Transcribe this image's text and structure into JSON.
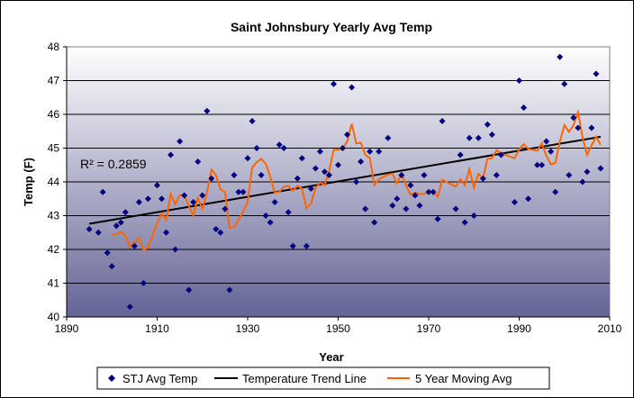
{
  "chart_data": {
    "type": "scatter",
    "title": "Saint Johnsbury Yearly Avg Temp",
    "xlabel": "Year",
    "ylabel": "Temp (F)",
    "xlim": [
      1890,
      2010
    ],
    "ylim": [
      40,
      48
    ],
    "xticks": [
      1890,
      1910,
      1930,
      1950,
      1970,
      1990,
      2010
    ],
    "yticks": [
      40,
      41,
      42,
      43,
      44,
      45,
      46,
      47,
      48
    ],
    "grid": "horizontal",
    "legend_position": "bottom",
    "annotation": "R² = 0.2859",
    "colors": {
      "points": "#000080",
      "trend": "#000000",
      "moving_avg": "#ff6600",
      "plot_top": "#ffffff",
      "plot_bottom": "#646496"
    },
    "series": [
      {
        "name": "STJ Avg Temp",
        "kind": "scatter",
        "x": [
          1895,
          1897,
          1898,
          1899,
          1900,
          1901,
          1902,
          1903,
          1904,
          1905,
          1906,
          1907,
          1908,
          1910,
          1911,
          1912,
          1913,
          1914,
          1915,
          1916,
          1917,
          1918,
          1919,
          1920,
          1921,
          1922,
          1923,
          1924,
          1925,
          1926,
          1927,
          1928,
          1929,
          1930,
          1931,
          1932,
          1933,
          1934,
          1935,
          1936,
          1937,
          1938,
          1939,
          1940,
          1941,
          1942,
          1943,
          1944,
          1945,
          1946,
          1947,
          1948,
          1949,
          1950,
          1951,
          1952,
          1953,
          1954,
          1955,
          1956,
          1957,
          1958,
          1959,
          1961,
          1962,
          1963,
          1964,
          1965,
          1966,
          1967,
          1968,
          1969,
          1970,
          1971,
          1972,
          1973,
          1976,
          1977,
          1978,
          1979,
          1980,
          1981,
          1982,
          1983,
          1984,
          1985,
          1986,
          1989,
          1990,
          1991,
          1992,
          1994,
          1995,
          1996,
          1997,
          1998,
          1999,
          2000,
          2001,
          2002,
          2003,
          2004,
          2005,
          2006,
          2007,
          2008
        ],
        "y": [
          42.6,
          42.5,
          43.7,
          41.9,
          41.5,
          42.7,
          42.8,
          43.1,
          40.3,
          42.1,
          43.4,
          41.0,
          43.5,
          43.9,
          43.5,
          42.5,
          44.8,
          42.0,
          45.2,
          43.6,
          40.8,
          43.4,
          44.6,
          43.6,
          46.1,
          44.1,
          42.6,
          42.5,
          43.2,
          40.8,
          44.2,
          43.7,
          43.7,
          44.7,
          45.8,
          45.0,
          44.2,
          43.0,
          42.8,
          43.4,
          45.1,
          45.0,
          43.1,
          42.1,
          44.1,
          44.7,
          42.1,
          43.8,
          44.4,
          44.9,
          44.3,
          44.2,
          46.9,
          44.5,
          45.0,
          45.4,
          46.8,
          44.0,
          44.6,
          43.2,
          44.9,
          42.8,
          44.9,
          45.3,
          43.3,
          43.5,
          44.2,
          43.2,
          43.9,
          43.6,
          43.3,
          44.2,
          43.7,
          43.7,
          42.9,
          45.8,
          43.2,
          44.8,
          42.8,
          45.3,
          43.0,
          45.3,
          44.1,
          45.7,
          45.4,
          44.2,
          44.8,
          43.4,
          47.0,
          46.2,
          43.5,
          44.5,
          44.5,
          45.2,
          44.9,
          43.7,
          47.7,
          46.9,
          44.2,
          45.9,
          45.6,
          44.0,
          44.3,
          45.6,
          47.2,
          44.4
        ]
      },
      {
        "name": "Temperature Trend Line",
        "kind": "linear-trend"
      },
      {
        "name": "5 Year Moving Avg",
        "kind": "moving-average",
        "period": 5
      }
    ]
  }
}
